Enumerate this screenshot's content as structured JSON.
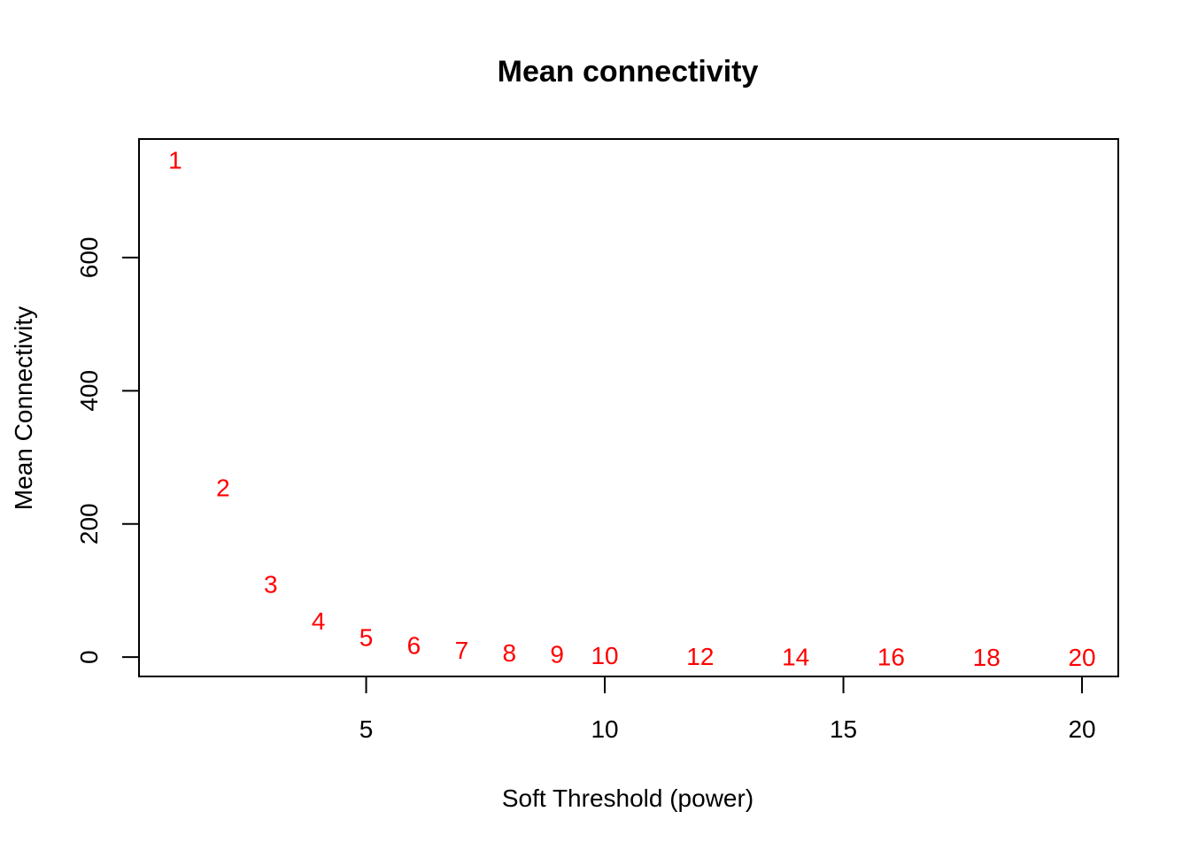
{
  "chart_data": {
    "type": "scatter",
    "title": "Mean connectivity",
    "xlabel": "Soft Threshold (power)",
    "ylabel": "Mean Connectivity",
    "xlim": [
      0.24,
      20.76
    ],
    "ylim": [
      -29,
      778
    ],
    "xticks": [
      5,
      10,
      15,
      20
    ],
    "yticks": [
      0,
      200,
      400,
      600
    ],
    "grid": false,
    "point_color": "#ff0000",
    "points": [
      {
        "x": 1,
        "y": 747,
        "label": "1"
      },
      {
        "x": 2,
        "y": 255,
        "label": "2"
      },
      {
        "x": 3,
        "y": 110,
        "label": "3"
      },
      {
        "x": 4,
        "y": 55,
        "label": "4"
      },
      {
        "x": 5,
        "y": 30,
        "label": "5"
      },
      {
        "x": 6,
        "y": 18,
        "label": "6"
      },
      {
        "x": 7,
        "y": 11,
        "label": "7"
      },
      {
        "x": 8,
        "y": 7,
        "label": "8"
      },
      {
        "x": 9,
        "y": 5,
        "label": "9"
      },
      {
        "x": 10,
        "y": 3,
        "label": "10"
      },
      {
        "x": 12,
        "y": 1.5,
        "label": "12"
      },
      {
        "x": 14,
        "y": 1,
        "label": "14"
      },
      {
        "x": 16,
        "y": 0.6,
        "label": "16"
      },
      {
        "x": 18,
        "y": 0.4,
        "label": "18"
      },
      {
        "x": 20,
        "y": 0.3,
        "label": "20"
      }
    ]
  }
}
